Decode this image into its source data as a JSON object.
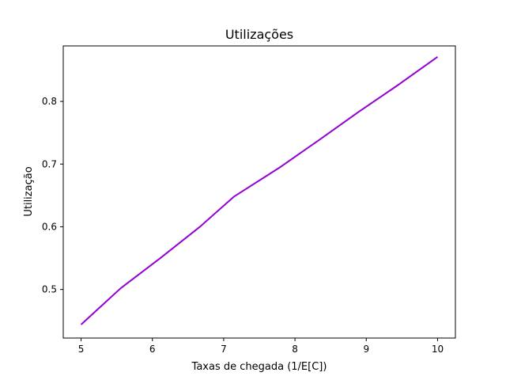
{
  "chart_data": {
    "type": "line",
    "title": "Utilizações",
    "xlabel": "Taxas de chegada (1/E[C])",
    "ylabel": "Utilização",
    "xlim": [
      4.75,
      10.25
    ],
    "ylim": [
      0.4225,
      0.8885
    ],
    "xticks": [
      5,
      6,
      7,
      8,
      9,
      10
    ],
    "xtick_labels": [
      "5",
      "6",
      "7",
      "8",
      "9",
      "10"
    ],
    "yticks": [
      0.5,
      0.6,
      0.7,
      0.8
    ],
    "ytick_labels": [
      "0.5",
      "0.6",
      "0.7",
      "0.8"
    ],
    "grid": false,
    "series": [
      {
        "color": "#9400d3",
        "x": [
          5.0,
          5.556,
          6.111,
          6.667,
          7.143,
          7.778,
          8.333,
          8.889,
          9.444,
          10.0
        ],
        "y": [
          0.444,
          0.502,
          0.55,
          0.6,
          0.648,
          0.694,
          0.738,
          0.783,
          0.826,
          0.871
        ]
      }
    ]
  }
}
